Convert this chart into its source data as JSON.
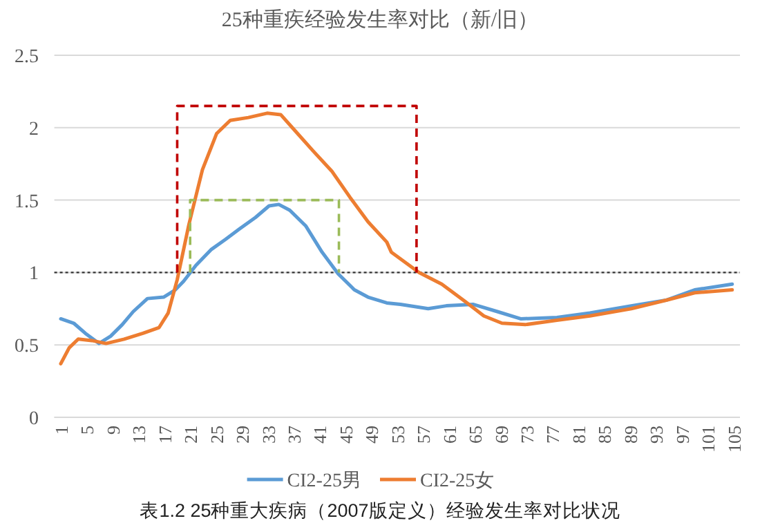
{
  "chart_data": {
    "type": "line",
    "title": "25种重疾经验发生率对比（新/旧）",
    "annotations": [
      "表1.2   25种重大疾病（2007版定义）经验发生率对比状况"
    ],
    "xlim": [
      0,
      106
    ],
    "xticks": [
      1,
      5,
      9,
      13,
      17,
      21,
      25,
      29,
      33,
      37,
      41,
      45,
      49,
      53,
      57,
      61,
      65,
      69,
      73,
      77,
      81,
      85,
      89,
      93,
      97,
      101,
      105
    ],
    "ylim": [
      0,
      2.5
    ],
    "yticks": [
      0,
      0.5,
      1,
      1.5,
      2,
      2.5
    ],
    "grid": "y",
    "legend": "bottom",
    "ref_lines": [
      {
        "axis": "y",
        "value": 1,
        "label": null,
        "color": "#333333",
        "line_style": "dotted"
      }
    ],
    "series": [
      {
        "name": "CI2-25男",
        "color": "#5b9bd5",
        "x": [
          1,
          3,
          4.8,
          6.9,
          8.7,
          10.5,
          12.2,
          14.4,
          16.9,
          18.7,
          20,
          21.9,
          24.3,
          26.5,
          28.6,
          31.1,
          33.2,
          34.7,
          36.4,
          38.9,
          41.4,
          43.9,
          46.4,
          48.5,
          51.4,
          53.5,
          57.8,
          60.6,
          64.8,
          68.5,
          72.1,
          77.7,
          82.8,
          89.2,
          94.7,
          99,
          104.8
        ],
        "values": [
          0.68,
          0.65,
          0.58,
          0.51,
          0.56,
          0.64,
          0.73,
          0.82,
          0.83,
          0.88,
          0.94,
          1.05,
          1.16,
          1.23,
          1.3,
          1.38,
          1.46,
          1.47,
          1.43,
          1.32,
          1.14,
          0.99,
          0.88,
          0.83,
          0.79,
          0.78,
          0.75,
          0.77,
          0.78,
          0.73,
          0.68,
          0.69,
          0.72,
          0.77,
          0.81,
          0.88,
          0.92
        ]
      },
      {
        "name": "CI2-25女",
        "color": "#ed7d31",
        "x": [
          1,
          2.3,
          3.7,
          5.8,
          8,
          10.8,
          13.7,
          16.2,
          17.6,
          19,
          20.8,
          22.9,
          25.1,
          27.2,
          30,
          32.9,
          35,
          37.2,
          40,
          42.9,
          45.7,
          48.5,
          51.4,
          52.1,
          56.4,
          59.9,
          63.5,
          66.4,
          69.2,
          72.8,
          77.7,
          82.8,
          89.2,
          94.7,
          99,
          104.8
        ],
        "values": [
          0.37,
          0.48,
          0.54,
          0.53,
          0.51,
          0.54,
          0.58,
          0.62,
          0.72,
          0.95,
          1.33,
          1.71,
          1.96,
          2.05,
          2.07,
          2.1,
          2.09,
          1.98,
          1.84,
          1.7,
          1.52,
          1.35,
          1.21,
          1.14,
          1.0,
          0.92,
          0.8,
          0.7,
          0.65,
          0.64,
          0.67,
          0.7,
          0.75,
          0.81,
          0.86,
          0.88
        ]
      },
      {
        "type": "line",
        "line_style": "dashed",
        "color": "#c00000",
        "x": [
          19,
          19,
          56,
          56
        ],
        "values": [
          1,
          2.15,
          2.15,
          1
        ]
      },
      {
        "type": "line",
        "line_style": "dashed",
        "color": "#9bbb59",
        "x": [
          21,
          21,
          44,
          44
        ],
        "values": [
          1,
          1.5,
          1.5,
          1
        ]
      }
    ]
  }
}
